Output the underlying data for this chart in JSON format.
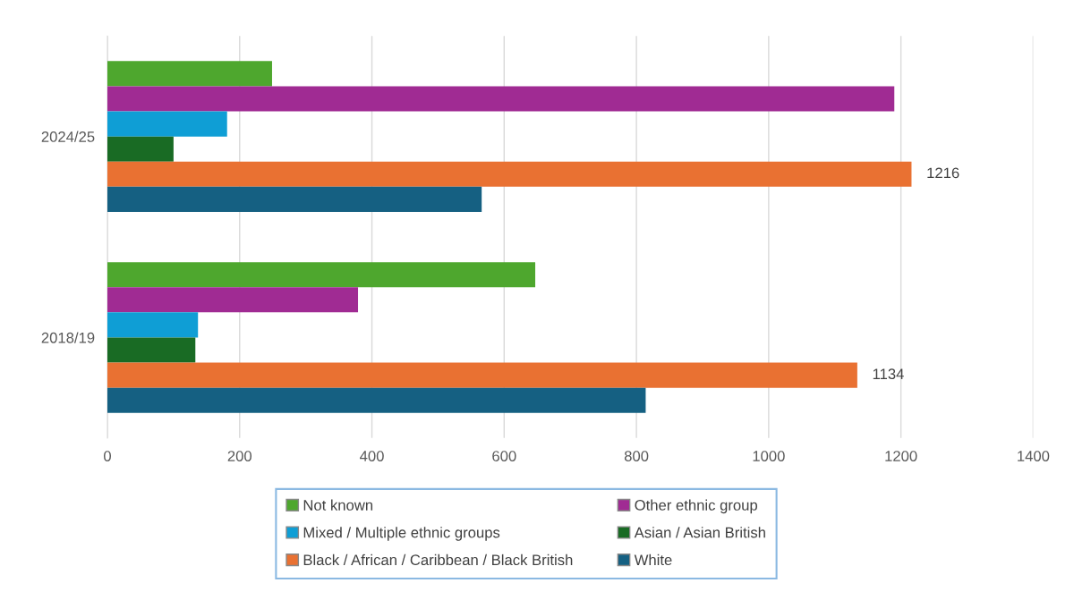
{
  "chart_data": {
    "type": "bar",
    "orientation": "horizontal",
    "categories": [
      "2024/25",
      "2018/19"
    ],
    "series": [
      {
        "name": "Not known",
        "color": "#4ea72e",
        "values": [
          249,
          647
        ]
      },
      {
        "name": "Other ethnic group",
        "color": "#a02b93",
        "values": [
          1190,
          379
        ]
      },
      {
        "name": "Mixed / Multiple ethnic groups",
        "color": "#0f9ed5",
        "values": [
          181,
          137
        ]
      },
      {
        "name": "Asian / Asian British",
        "color": "#196b24",
        "values": [
          100,
          133
        ]
      },
      {
        "name": "Black / African / Caribbean / Black British",
        "color": "#e97132",
        "values": [
          1216,
          1134
        ],
        "value_labels": [
          "1216",
          "1134"
        ]
      },
      {
        "name": "White",
        "color": "#156082",
        "values": [
          566,
          814
        ]
      }
    ],
    "xlim": [
      0,
      1400
    ],
    "xticks": [
      0,
      200,
      400,
      600,
      800,
      1000,
      1200,
      1400
    ],
    "grid": "x",
    "legend": "bottom"
  }
}
